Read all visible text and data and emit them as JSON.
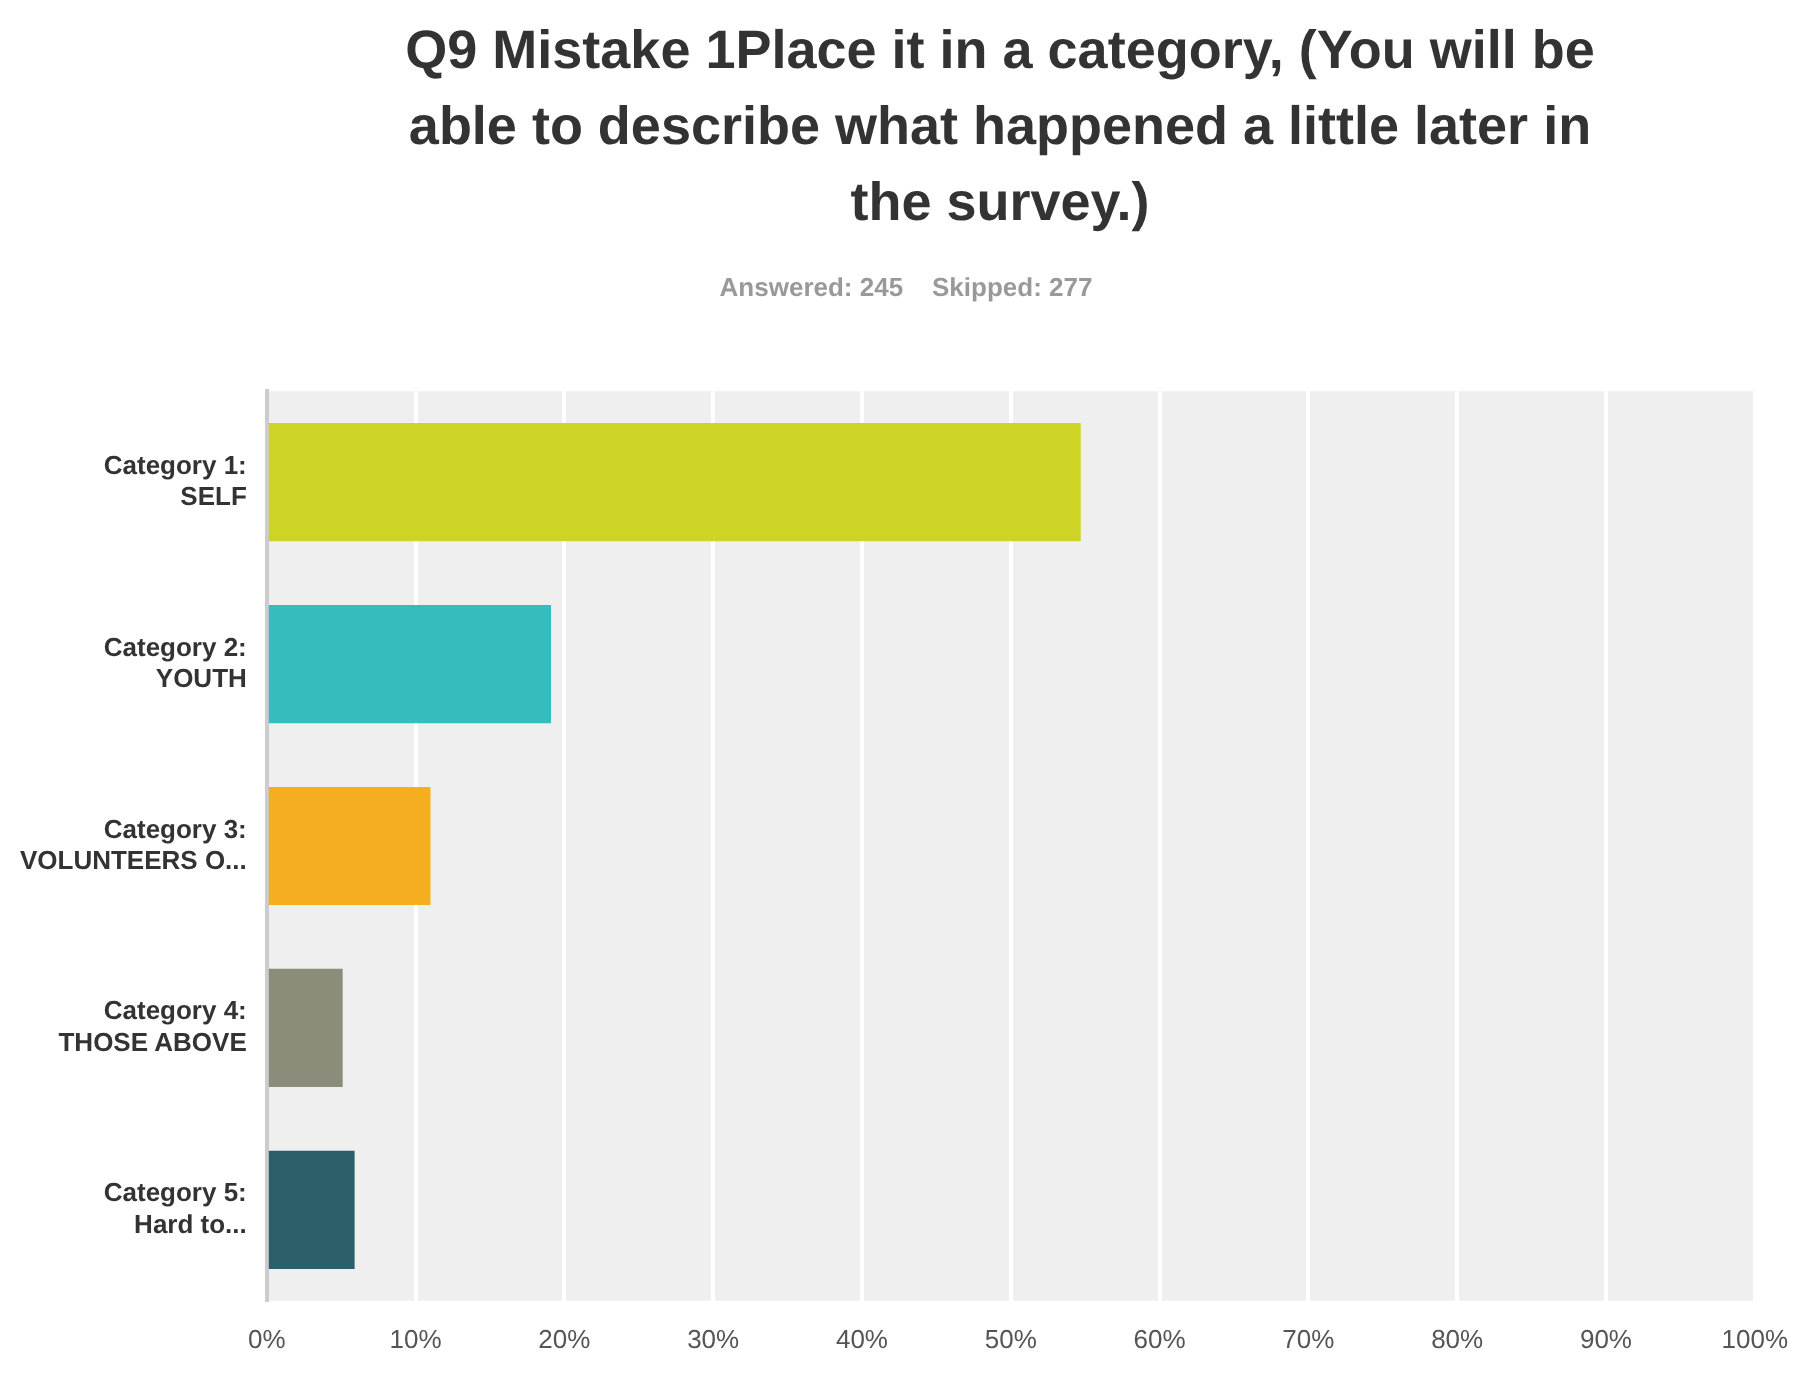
{
  "chart_data": {
    "type": "bar",
    "orientation": "horizontal",
    "title": "Q9 Mistake 1Place it in a category, (You will be able to describe what happened a little later in the survey.)",
    "subtitle": "Answered: 245    Skipped: 277",
    "categories": [
      "Category 1: SELF",
      "Category 2: YOUTH",
      "Category 3: VOLUNTEERS O...",
      "Category 4: THOSE ABOVE",
      "Category 5: Hard to..."
    ],
    "values": [
      54.7,
      19.1,
      11.0,
      5.1,
      5.9
    ],
    "colors": [
      "#cdd425",
      "#35bcbf",
      "#f4ae1f",
      "#8c8c7a",
      "#2c5f6a"
    ],
    "xlim": [
      0,
      100
    ],
    "xticks": [
      {
        "value": 0,
        "label": "0%"
      },
      {
        "value": 10,
        "label": "10%"
      },
      {
        "value": 20,
        "label": "20%"
      },
      {
        "value": 30,
        "label": "30%"
      },
      {
        "value": 40,
        "label": "40%"
      },
      {
        "value": 50,
        "label": "50%"
      },
      {
        "value": 60,
        "label": "60%"
      },
      {
        "value": 70,
        "label": "70%"
      },
      {
        "value": 80,
        "label": "80%"
      },
      {
        "value": 90,
        "label": "90%"
      },
      {
        "value": 100,
        "label": "100%"
      }
    ],
    "grid": "x",
    "legend": false
  }
}
